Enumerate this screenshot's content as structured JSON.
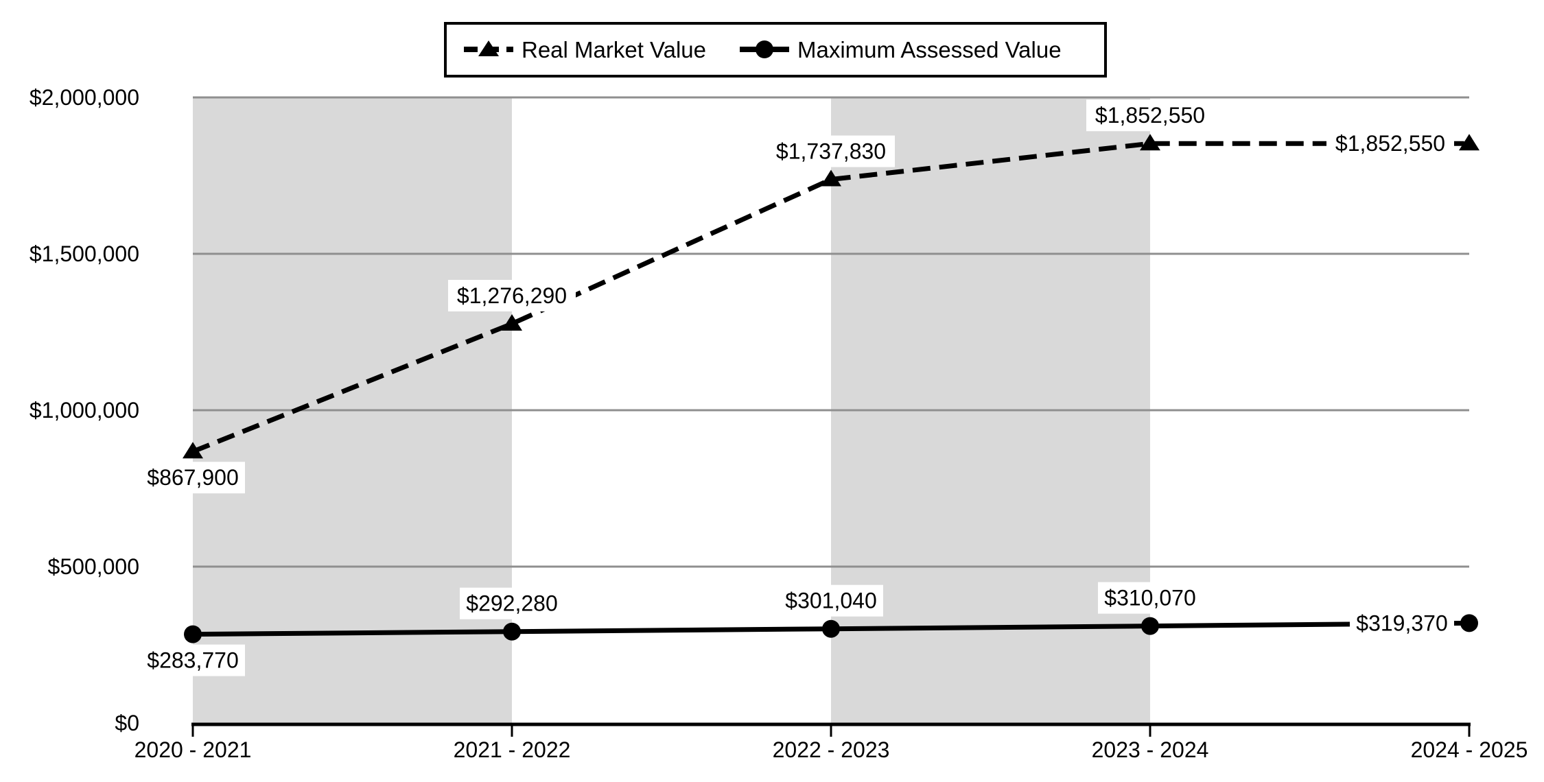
{
  "chart_data": {
    "type": "line",
    "title": "",
    "categories": [
      "2020 - 2021",
      "2021 - 2022",
      "2022 - 2023",
      "2023 - 2024",
      "2024 - 2025"
    ],
    "series": [
      {
        "name": "Real Market Value",
        "style": "dashed",
        "marker": "triangle",
        "values": [
          867900,
          1276290,
          1737830,
          1852550,
          1852550
        ],
        "data_labels": [
          "$867,900",
          "$1,276,290",
          "$1,737,830",
          "$1,852,550",
          "$1,852,550"
        ],
        "label_positions": [
          "below",
          "above",
          "above",
          "above",
          "left"
        ]
      },
      {
        "name": "Maximum Assessed Value",
        "style": "solid",
        "marker": "circle",
        "values": [
          283770,
          292280,
          301040,
          310070,
          319370
        ],
        "data_labels": [
          "$283,770",
          "$292,280",
          "$301,040",
          "$310,070",
          "$319,370"
        ],
        "label_positions": [
          "below",
          "above",
          "above",
          "above",
          "left"
        ]
      }
    ],
    "y_axis": {
      "min": 0,
      "max": 2000000,
      "ticks": [
        {
          "value": 0,
          "label": "$0"
        },
        {
          "value": 500000,
          "label": "$500,000"
        },
        {
          "value": 1000000,
          "label": "$1,000,000"
        },
        {
          "value": 1500000,
          "label": "$1,500,000"
        },
        {
          "value": 2000000,
          "label": "$2,000,000"
        }
      ]
    },
    "xlabel": "",
    "ylabel": "",
    "shaded_bands": [
      [
        0,
        1
      ],
      [
        2,
        3
      ]
    ],
    "legend_position": "top",
    "grid": true,
    "colors": {
      "series": "#000000",
      "band": "#d9d9d9",
      "gridline": "#8f8f8f",
      "axis": "#000000",
      "label_bg": "#ffffff",
      "legend_border": "#000000",
      "legend_bg": "#ffffff"
    }
  }
}
